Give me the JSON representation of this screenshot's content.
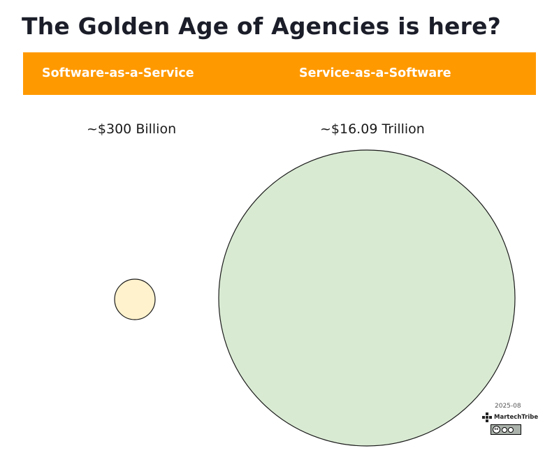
{
  "title": "The Golden Age of Agencies is here?",
  "columns": [
    {
      "label": "Software-as-a-Service",
      "value": "~$300 Billion",
      "amount_usd": 300000000000,
      "fill": "#fff2cc",
      "stroke": "#1a1a1a"
    },
    {
      "label": "Service-as-a-Software",
      "value": "~$16.09 Trillion",
      "amount_usd": 16090000000000,
      "fill": "#d9ead3",
      "stroke": "#1a1a1a"
    }
  ],
  "colors": {
    "band": "#ff9900",
    "title": "#1b1e29"
  },
  "footer": {
    "date": "2025-08",
    "brand": "MartechTribe",
    "license": "CC BY-ND"
  }
}
